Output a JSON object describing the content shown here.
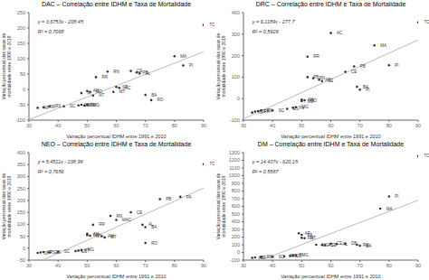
{
  "chart_data": [
    {
      "type": "scatter",
      "title": "DAC – Correlação entre IDHM e Taxa de Mortalidade",
      "xlabel": "Variação percentual IDHM entre 1991 e 2010",
      "ylabel": "Variação percentual das taxas de\nmortalidade entre 1990 e 2019",
      "xlim": [
        30,
        90
      ],
      "ylim": [
        -100,
        250
      ],
      "xticks": [
        30,
        40,
        50,
        60,
        70,
        80,
        90
      ],
      "yticks": [
        -100,
        -50,
        0,
        50,
        100,
        150,
        200,
        250
      ],
      "color": "#333333",
      "x": [
        33,
        35,
        37,
        42,
        47,
        48,
        49,
        50,
        48,
        50,
        51,
        52,
        53,
        57,
        60,
        61,
        59,
        65,
        67,
        68,
        70,
        72,
        80,
        83,
        90
      ],
      "values": [
        -60,
        -58,
        -55,
        -55,
        -52,
        -50,
        -52,
        -50,
        -12,
        -5,
        -8,
        -20,
        40,
        58,
        8,
        5,
        -8,
        60,
        55,
        52,
        -18,
        -35,
        108,
        78,
        210
      ],
      "labels": [
        "AP",
        "RR",
        "RS",
        "SC",
        "ES",
        "MS",
        "PR",
        "MG",
        "PI",
        "AM",
        "GO",
        "NT",
        "RR",
        "RN",
        "SP",
        "AC",
        "MT",
        "CE",
        "PB",
        "AL",
        "BA",
        "RO",
        "MA",
        "PI",
        "TO"
      ],
      "trend_line": {
        "type": "line",
        "x": [
          30,
          90
        ],
        "values": [
          -98.191,
          122.327
        ],
        "color": "#bbbbbb"
      },
      "annotations": [
        "y = 3,6753x - 208,45",
        "R² = 0,7068"
      ]
    },
    {
      "type": "scatter",
      "title": "DRC – Correlação entre IDHM e Taxa de Mortalidade",
      "xlabel": "Variação percentual IDHM entre 1991 e 2010",
      "ylabel": "Variação percentual das taxas de\nmortalidade entre 1990 e 2019",
      "xlim": [
        30,
        90
      ],
      "ylim": [
        -100,
        400
      ],
      "xticks": [
        30,
        40,
        50,
        60,
        70,
        80,
        90
      ],
      "yticks": [
        -100,
        0,
        100,
        200,
        300,
        400
      ],
      "color": "#333333",
      "x": [
        33,
        34,
        35,
        36,
        40,
        45,
        47,
        48,
        50,
        50,
        51,
        52,
        52,
        54,
        56,
        57,
        60,
        65,
        68,
        69,
        70,
        75,
        80,
        90
      ],
      "values": [
        -65,
        -60,
        -58,
        -55,
        -55,
        -48,
        -42,
        -40,
        -5,
        -12,
        -8,
        100,
        195,
        95,
        88,
        82,
        305,
        125,
        150,
        55,
        42,
        248,
        155,
        355
      ],
      "labels": [
        "IO",
        "DF",
        "RR",
        "RS",
        "SC",
        "ES",
        "Pa",
        "MG",
        "AM",
        "MO",
        "GO",
        "PB",
        "RR",
        "RN",
        "AP",
        "SE",
        "AC",
        "CE",
        "PB",
        "BA",
        "PI",
        "MA",
        "PI",
        "TO"
      ],
      "trend_line": {
        "type": "line",
        "x": [
          30,
          90
        ],
        "values": [
          -94.133,
          273.001
        ],
        "color": "#bbbbbb"
      },
      "annotations": [
        "y = 6,1189x - 277,7",
        "R² = 0,5929"
      ]
    },
    {
      "type": "scatter",
      "title": "NEO – Correlação entre IDHM e Taxa de Mortalidade",
      "xlabel": "Variação percentual IDHM entre 1991 e 2010",
      "ylabel": "Variação percentual das taxas de\nmortalidade entre 1990 e 2019",
      "xlim": [
        30,
        90
      ],
      "ylim": [
        -50,
        400
      ],
      "xticks": [
        30,
        40,
        50,
        60,
        70,
        80,
        90
      ],
      "yticks": [
        -50,
        0,
        50,
        100,
        150,
        200,
        250,
        300,
        350,
        400
      ],
      "color": "#333333",
      "x": [
        33,
        34,
        35,
        37,
        40,
        46,
        47,
        48,
        50,
        50,
        51,
        52,
        55,
        56,
        58,
        60,
        65,
        69,
        70,
        70,
        75,
        82,
        90
      ],
      "values": [
        -20,
        -18,
        -16,
        -18,
        -15,
        -12,
        -10,
        -8,
        55,
        60,
        52,
        98,
        50,
        45,
        135,
        118,
        150,
        98,
        88,
        22,
        205,
        215,
        352
      ],
      "labels": [
        "IO",
        "AP",
        "RS",
        "ES",
        "SC",
        "ES",
        "PT",
        "MG",
        "GO",
        "AM",
        "NT",
        "RR",
        "AM",
        "MT",
        "RN",
        "MAC",
        "CE",
        "AL",
        "BA",
        "RO",
        "PB",
        "PA",
        "TO"
      ],
      "trend_line": {
        "type": "line",
        "x": [
          30,
          90
        ],
        "values": [
          -75.457,
          251.609
        ],
        "color": "#bbbbbb"
      },
      "annotations": [
        "y = 5,4511x - 238,99",
        "R² = 0,7656"
      ]
    },
    {
      "type": "scatter",
      "title": "DM – Correlação entre IDHM e Taxa de Mortalidade",
      "xlabel": "Variação percentual IDHM entre 1991 e 2010",
      "ylabel": "Variação percentual das taxas de\nmortalidade entre 1990 e 2019",
      "xlim": [
        30,
        90
      ],
      "ylim": [
        -100,
        1300
      ],
      "xticks": [
        30,
        40,
        50,
        60,
        70,
        80,
        90
      ],
      "yticks": [
        -100,
        0,
        100,
        200,
        300,
        400,
        500,
        600,
        700,
        800,
        900,
        1000,
        1100,
        1200,
        1300
      ],
      "color": "#333333",
      "x": [
        33,
        34,
        36,
        40,
        44,
        46,
        47,
        48,
        49,
        50,
        50,
        51,
        55,
        57,
        58,
        60,
        62,
        65,
        69,
        70,
        77,
        80,
        90
      ],
      "values": [
        -70,
        -65,
        -60,
        -55,
        -50,
        -45,
        -40,
        -38,
        250,
        230,
        190,
        185,
        100,
        98,
        95,
        115,
        108,
        115,
        100,
        88,
        570,
        730,
        1255
      ],
      "labels": [
        "AP",
        "DF",
        "RS",
        "SC",
        "RR",
        "ES",
        "PI",
        "MG",
        "AP",
        "PA",
        "RN",
        "NT",
        "MG",
        "AC",
        "SE",
        "CE",
        "AL",
        "DB",
        "RO",
        "BA",
        "MA",
        "PI",
        "TO"
      ],
      "trend_line": {
        "type": "line",
        "x": [
          30,
          90
        ],
        "values": [
          -187.04,
          679.18
        ],
        "color": "#bbbbbb"
      },
      "annotations": [
        "y = 14,437x - 620,15",
        "R² = 0,5587"
      ]
    }
  ]
}
